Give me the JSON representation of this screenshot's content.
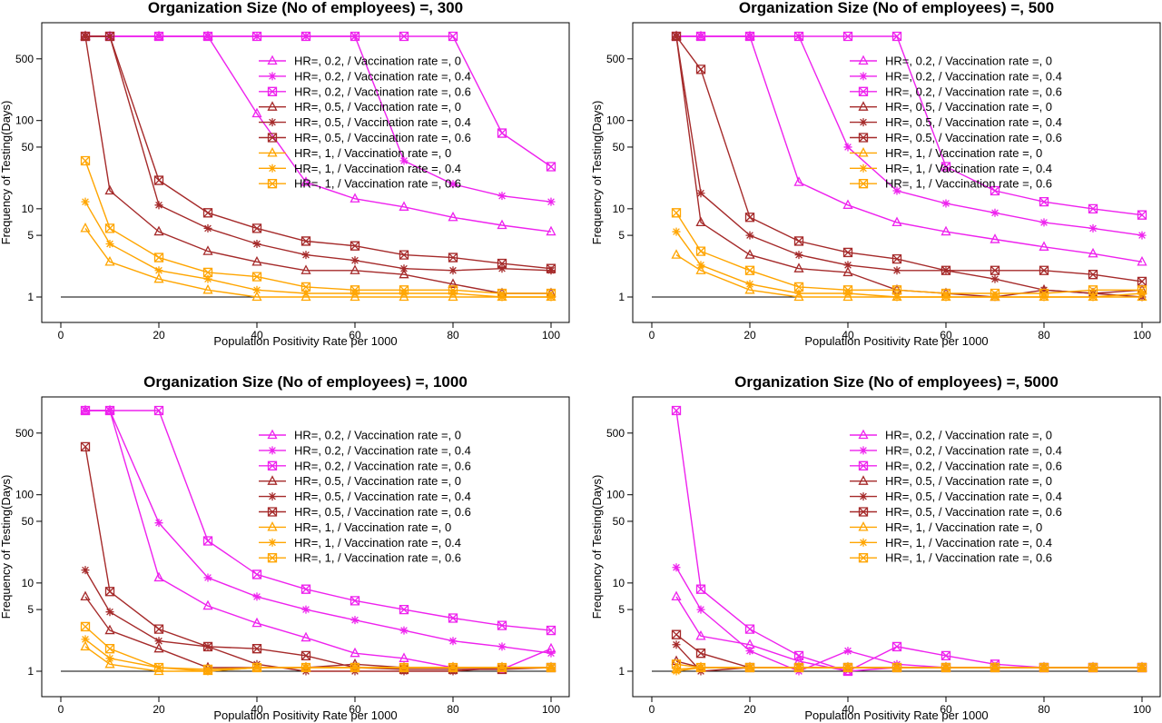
{
  "legend_labels": [
    "HR=, 0.2, / Vaccination rate =, 0",
    "HR=, 0.2, / Vaccination rate =, 0.4",
    "HR=, 0.2, / Vaccination rate =, 0.6",
    "HR=, 0.5, / Vaccination rate =, 0",
    "HR=, 0.5, / Vaccination rate =, 0.4",
    "HR=, 0.5, / Vaccination rate =, 0.6",
    "HR=, 1, / Vaccination rate =, 0",
    "HR=, 1, / Vaccination rate =, 0.4",
    "HR=, 1, / Vaccination rate =, 0.6"
  ],
  "series_style": [
    {
      "color": "#ee22ee",
      "marker": "triangle"
    },
    {
      "color": "#ee22ee",
      "marker": "asterisk"
    },
    {
      "color": "#ee22ee",
      "marker": "boxx"
    },
    {
      "color": "#a52a2a",
      "marker": "triangle"
    },
    {
      "color": "#a52a2a",
      "marker": "asterisk"
    },
    {
      "color": "#a52a2a",
      "marker": "boxx"
    },
    {
      "color": "#ffa500",
      "marker": "triangle"
    },
    {
      "color": "#ffa500",
      "marker": "asterisk"
    },
    {
      "color": "#ffa500",
      "marker": "boxx"
    }
  ],
  "chart_data": [
    {
      "type": "line",
      "title": "Organization Size (No of employees) =, 300",
      "xlabel": "Population Positivity Rate per 1000",
      "ylabel": "Frequency of Testing(Days)",
      "y_scale": "log",
      "xlim": [
        0,
        100
      ],
      "ylim": [
        1,
        1000
      ],
      "x_ticks": [
        0,
        20,
        40,
        60,
        80,
        100
      ],
      "y_ticks": [
        1,
        5,
        10,
        50,
        100,
        500
      ],
      "x": [
        5,
        10,
        20,
        30,
        40,
        50,
        60,
        70,
        80,
        90,
        100
      ],
      "baseline": 1,
      "legend_position": "top-right",
      "series": [
        {
          "name": "HR=, 0.2, / Vaccination rate =, 0",
          "values": [
            900,
            900,
            900,
            900,
            120,
            20,
            13,
            10.5,
            8,
            6.5,
            5.5
          ]
        },
        {
          "name": "HR=, 0.2, / Vaccination rate =, 0.4",
          "values": [
            900,
            900,
            900,
            900,
            900,
            900,
            900,
            35,
            19,
            14,
            12
          ]
        },
        {
          "name": "HR=, 0.2, / Vaccination rate =, 0.6",
          "values": [
            900,
            900,
            900,
            900,
            900,
            900,
            900,
            900,
            900,
            72,
            30
          ]
        },
        {
          "name": "HR=, 0.5, / Vaccination rate =, 0",
          "values": [
            900,
            16,
            5.5,
            3.3,
            2.5,
            2,
            2,
            1.8,
            1.4,
            1.1,
            1.1
          ]
        },
        {
          "name": "HR=, 0.5, / Vaccination rate =, 0.4",
          "values": [
            900,
            900,
            11,
            6,
            4,
            3,
            2.6,
            2.1,
            2,
            2.1,
            2
          ]
        },
        {
          "name": "HR=, 0.5, / Vaccination rate =, 0.6",
          "values": [
            900,
            900,
            21,
            9,
            6,
            4.3,
            3.8,
            3,
            2.8,
            2.4,
            2.1
          ]
        },
        {
          "name": "HR=, 1, / Vaccination rate =, 0",
          "values": [
            6,
            2.5,
            1.6,
            1.2,
            1,
            1,
            1,
            1,
            1,
            1,
            1
          ]
        },
        {
          "name": "HR=, 1, / Vaccination rate =, 0.4",
          "values": [
            12,
            4,
            2,
            1.6,
            1.2,
            1.1,
            1.1,
            1.1,
            1.1,
            1,
            1
          ]
        },
        {
          "name": "HR=, 1, / Vaccination rate =, 0.6",
          "values": [
            35,
            6,
            2.8,
            1.9,
            1.7,
            1.3,
            1.2,
            1.2,
            1.2,
            1.1,
            1.1
          ]
        }
      ]
    },
    {
      "type": "line",
      "title": "Organization Size (No of employees) =, 500",
      "xlabel": "Population Positivity Rate per 1000",
      "ylabel": "Frequency of Testing(Days)",
      "y_scale": "log",
      "xlim": [
        0,
        100
      ],
      "ylim": [
        1,
        1000
      ],
      "x_ticks": [
        0,
        20,
        40,
        60,
        80,
        100
      ],
      "y_ticks": [
        1,
        5,
        10,
        50,
        100,
        500
      ],
      "x": [
        5,
        10,
        20,
        30,
        40,
        50,
        60,
        70,
        80,
        90,
        100
      ],
      "baseline": 1,
      "legend_position": "top-right",
      "series": [
        {
          "name": "HR=, 0.2, / Vaccination rate =, 0",
          "values": [
            900,
            900,
            900,
            20,
            11,
            7,
            5.5,
            4.5,
            3.7,
            3.1,
            2.5
          ]
        },
        {
          "name": "HR=, 0.2, / Vaccination rate =, 0.4",
          "values": [
            900,
            900,
            900,
            900,
            50,
            16,
            11.5,
            9,
            7,
            6,
            5
          ]
        },
        {
          "name": "HR=, 0.2, / Vaccination rate =, 0.6",
          "values": [
            900,
            900,
            900,
            900,
            900,
            900,
            30,
            16,
            12,
            10,
            8.5
          ]
        },
        {
          "name": "HR=, 0.5, / Vaccination rate =, 0",
          "values": [
            900,
            7,
            3,
            2.1,
            1.9,
            1.2,
            1.1,
            1,
            1.2,
            1.1,
            1.2
          ]
        },
        {
          "name": "HR=, 0.5, / Vaccination rate =, 0.4",
          "values": [
            900,
            15,
            5,
            3,
            2.3,
            2,
            2,
            1.6,
            1.2,
            1.1,
            1
          ]
        },
        {
          "name": "HR=, 0.5, / Vaccination rate =, 0.6",
          "values": [
            900,
            380,
            8,
            4.3,
            3.2,
            2.7,
            2,
            2,
            2,
            1.8,
            1.5
          ]
        },
        {
          "name": "HR=, 1, / Vaccination rate =, 0",
          "values": [
            3,
            2,
            1.2,
            1,
            1,
            1,
            1,
            1,
            1,
            1,
            1
          ]
        },
        {
          "name": "HR=, 1, / Vaccination rate =, 0.4",
          "values": [
            5.5,
            2.3,
            1.4,
            1.1,
            1.1,
            1,
            1,
            1,
            1,
            1,
            1.1
          ]
        },
        {
          "name": "HR=, 1, / Vaccination rate =, 0.6",
          "values": [
            9,
            3.3,
            2,
            1.3,
            1.2,
            1.2,
            1.1,
            1.1,
            1.1,
            1.2,
            1.2
          ]
        }
      ]
    },
    {
      "type": "line",
      "title": "Organization Size (No of employees) =, 1000",
      "xlabel": "Population Positivity Rate per 1000",
      "ylabel": "Frequency of Testing(Days)",
      "y_scale": "log",
      "xlim": [
        0,
        100
      ],
      "ylim": [
        1,
        1000
      ],
      "x_ticks": [
        0,
        20,
        40,
        60,
        80,
        100
      ],
      "y_ticks": [
        1,
        5,
        10,
        50,
        100,
        500
      ],
      "x": [
        5,
        10,
        20,
        30,
        40,
        50,
        60,
        70,
        80,
        90,
        100
      ],
      "baseline": 1,
      "legend_position": "top-right",
      "series": [
        {
          "name": "HR=, 0.2, / Vaccination rate =, 0",
          "values": [
            900,
            900,
            11.5,
            5.5,
            3.5,
            2.4,
            1.6,
            1.4,
            1.1,
            1.05,
            1.8
          ]
        },
        {
          "name": "HR=, 0.2, / Vaccination rate =, 0.4",
          "values": [
            900,
            900,
            48,
            11.5,
            7,
            5,
            3.8,
            2.9,
            2.2,
            1.9,
            1.6
          ]
        },
        {
          "name": "HR=, 0.2, / Vaccination rate =, 0.6",
          "values": [
            900,
            900,
            900,
            30,
            12.5,
            8.5,
            6.3,
            5,
            4,
            3.3,
            2.9
          ]
        },
        {
          "name": "HR=, 0.5, / Vaccination rate =, 0",
          "values": [
            7,
            2.9,
            1.8,
            1.1,
            1.1,
            1.1,
            1.2,
            1.1,
            1.1,
            1.1,
            1.1
          ]
        },
        {
          "name": "HR=, 0.5, / Vaccination rate =, 0.4",
          "values": [
            14,
            4.7,
            2.2,
            1.9,
            1.2,
            1,
            1,
            1,
            1,
            1.1,
            1.1
          ]
        },
        {
          "name": "HR=, 0.5, / Vaccination rate =, 0.6",
          "values": [
            350,
            8,
            3,
            1.9,
            1.8,
            1.5,
            1.1,
            1.05,
            1.05,
            1.05,
            1.1
          ]
        },
        {
          "name": "HR=, 1, / Vaccination rate =, 0",
          "values": [
            1.9,
            1.2,
            1,
            1,
            1.1,
            1.1,
            1.1,
            1.1,
            1.1,
            1.1,
            1.1
          ]
        },
        {
          "name": "HR=, 1, / Vaccination rate =, 0.4",
          "values": [
            2.3,
            1.4,
            1.1,
            1,
            1.1,
            1.1,
            1.1,
            1.1,
            1.1,
            1.1,
            1.1
          ]
        },
        {
          "name": "HR=, 1, / Vaccination rate =, 0.6",
          "values": [
            3.2,
            1.8,
            1.1,
            1.05,
            1.1,
            1.1,
            1.1,
            1.1,
            1.1,
            1.1,
            1.1
          ]
        }
      ]
    },
    {
      "type": "line",
      "title": "Organization Size (No of employees) =, 5000",
      "xlabel": "Population Positivity Rate per 1000",
      "ylabel": "Frequency of Testing(Days)",
      "y_scale": "log",
      "xlim": [
        0,
        100
      ],
      "ylim": [
        1,
        1000
      ],
      "x_ticks": [
        0,
        20,
        40,
        60,
        80,
        100
      ],
      "y_ticks": [
        1,
        5,
        10,
        50,
        100,
        500
      ],
      "x": [
        5,
        10,
        20,
        30,
        40,
        50,
        60,
        70,
        80,
        90,
        100
      ],
      "baseline": 1,
      "legend_position": "top-right",
      "series": [
        {
          "name": "HR=, 0.2, / Vaccination rate =, 0",
          "values": [
            7,
            2.5,
            2,
            1.3,
            1,
            1.1,
            1.1,
            1.1,
            1.1,
            1.1,
            1.1
          ]
        },
        {
          "name": "HR=, 0.2, / Vaccination rate =, 0.4",
          "values": [
            15,
            5,
            1.7,
            1,
            1.7,
            1.2,
            1.1,
            1.1,
            1.1,
            1.1,
            1.1
          ]
        },
        {
          "name": "HR=, 0.2, / Vaccination rate =, 0.6",
          "values": [
            900,
            8.5,
            3,
            1.5,
            1,
            1.9,
            1.5,
            1.2,
            1.1,
            1.1,
            1.1
          ]
        },
        {
          "name": "HR=, 0.5, / Vaccination rate =, 0",
          "values": [
            1.3,
            1.1,
            1.1,
            1.1,
            1.1,
            1.1,
            1.1,
            1.1,
            1.1,
            1.1,
            1.1
          ]
        },
        {
          "name": "HR=, 0.5, / Vaccination rate =, 0.4",
          "values": [
            2,
            1,
            1.1,
            1.1,
            1.1,
            1.1,
            1.1,
            1.1,
            1.1,
            1.1,
            1.1
          ]
        },
        {
          "name": "HR=, 0.5, / Vaccination rate =, 0.6",
          "values": [
            2.6,
            1.6,
            1.1,
            1.1,
            1.1,
            1.1,
            1.1,
            1.1,
            1.1,
            1.1,
            1.1
          ]
        },
        {
          "name": "HR=, 1, / Vaccination rate =, 0",
          "values": [
            1.05,
            1.1,
            1.1,
            1.1,
            1.1,
            1.1,
            1.1,
            1.1,
            1.1,
            1.1,
            1.1
          ]
        },
        {
          "name": "HR=, 1, / Vaccination rate =, 0.4",
          "values": [
            1,
            1.1,
            1.1,
            1.1,
            1.1,
            1.1,
            1.1,
            1.1,
            1.1,
            1.1,
            1.1
          ]
        },
        {
          "name": "HR=, 1, / Vaccination rate =, 0.6",
          "values": [
            1.2,
            1.1,
            1.1,
            1.1,
            1.1,
            1.1,
            1.1,
            1.1,
            1.1,
            1.1,
            1.1
          ]
        }
      ]
    }
  ]
}
